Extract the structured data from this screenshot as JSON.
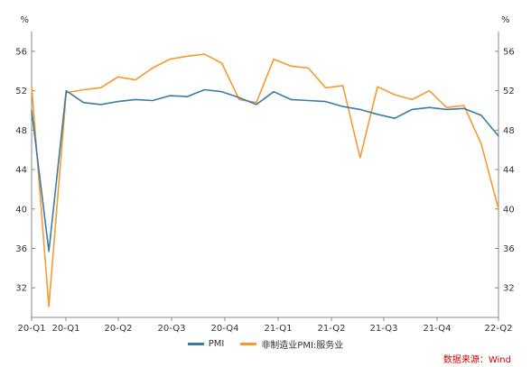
{
  "chart_data": {
    "type": "line",
    "y_unit_left": "%",
    "y_unit_right": "%",
    "ylim": [
      29,
      58
    ],
    "yticks": [
      32,
      36,
      40,
      44,
      48,
      52,
      56
    ],
    "x_tick_labels": [
      "20-Q1",
      "20-Q1",
      "20-Q2",
      "20-Q3",
      "20-Q4",
      "21-Q1",
      "21-Q2",
      "21-Q3",
      "21-Q4",
      "22-Q2"
    ],
    "grid": false,
    "legend_position": "bottom-center",
    "series": [
      {
        "name": "PMI",
        "color": "#3a7ca5",
        "values": [
          50.0,
          35.7,
          52.0,
          50.8,
          50.6,
          50.9,
          51.1,
          51.0,
          51.5,
          51.4,
          52.1,
          51.9,
          51.3,
          50.6,
          51.9,
          51.1,
          51.0,
          50.9,
          50.4,
          50.1,
          49.6,
          49.2,
          50.1,
          50.3,
          50.1,
          50.2,
          49.5,
          47.4
        ]
      },
      {
        "name": "非制造业PMI:服务业",
        "color": "#f39b2f",
        "values": [
          52.5,
          30.1,
          51.8,
          52.1,
          52.3,
          53.4,
          53.1,
          54.3,
          55.2,
          55.5,
          55.7,
          54.8,
          51.1,
          50.8,
          55.2,
          54.5,
          54.3,
          52.3,
          52.5,
          45.2,
          52.4,
          51.6,
          51.1,
          52.0,
          50.3,
          50.5,
          46.6,
          40.0
        ]
      }
    ]
  },
  "source_text": "数据来源：Wind"
}
